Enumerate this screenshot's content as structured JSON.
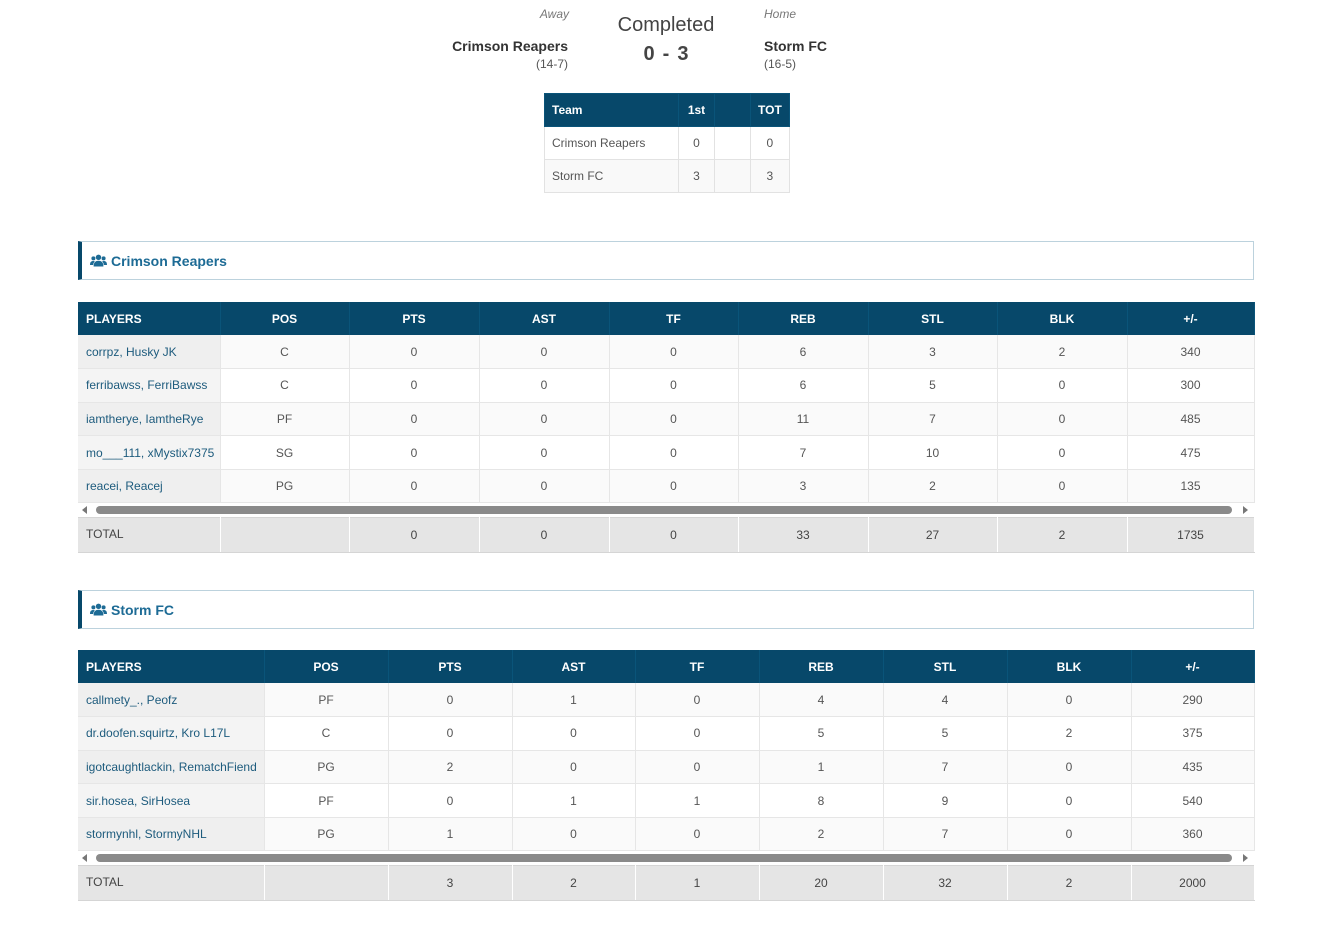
{
  "game": {
    "away_label": "Away",
    "home_label": "Home",
    "status": "Completed",
    "away_score": "0",
    "home_score": "3",
    "score_separator": "-",
    "away_team": "Crimson Reapers",
    "away_record": "(14-7)",
    "home_team": "Storm FC",
    "home_record": "(16-5)"
  },
  "linescore": {
    "headers": [
      "Team",
      "1st",
      "",
      "TOT"
    ],
    "rows": [
      {
        "team": "Crimson Reapers",
        "p1": "0",
        "blank": "",
        "tot": "0"
      },
      {
        "team": "Storm FC",
        "p1": "3",
        "blank": "",
        "tot": "3"
      }
    ]
  },
  "colors": {
    "header_bg": "#07486a",
    "link": "#1d5b7d",
    "section_title": "#1d6b95"
  },
  "icons": {
    "section": "users-icon"
  },
  "teams": [
    {
      "title": "Crimson Reapers",
      "columns": [
        "PLAYERS",
        "POS",
        "PTS",
        "AST",
        "TF",
        "REB",
        "STL",
        "BLK",
        "+/-"
      ],
      "players": [
        {
          "name": "corrpz, Husky JK",
          "pos": "C",
          "pts": "0",
          "ast": "0",
          "tf": "0",
          "reb": "6",
          "stl": "3",
          "blk": "2",
          "pm": "340"
        },
        {
          "name": "ferribawss, FerriBawss",
          "pos": "C",
          "pts": "0",
          "ast": "0",
          "tf": "0",
          "reb": "6",
          "stl": "5",
          "blk": "0",
          "pm": "300"
        },
        {
          "name": "iamtherye, IamtheRye",
          "pos": "PF",
          "pts": "0",
          "ast": "0",
          "tf": "0",
          "reb": "11",
          "stl": "7",
          "blk": "0",
          "pm": "485"
        },
        {
          "name": "mo___111, xMystix7375",
          "pos": "SG",
          "pts": "0",
          "ast": "0",
          "tf": "0",
          "reb": "7",
          "stl": "10",
          "blk": "0",
          "pm": "475"
        },
        {
          "name": "reacei, Reacej",
          "pos": "PG",
          "pts": "0",
          "ast": "0",
          "tf": "0",
          "reb": "3",
          "stl": "2",
          "blk": "0",
          "pm": "135"
        }
      ],
      "totals": {
        "label": "TOTAL",
        "pos": "",
        "pts": "0",
        "ast": "0",
        "tf": "0",
        "reb": "33",
        "stl": "27",
        "blk": "2",
        "pm": "1735"
      }
    },
    {
      "title": "Storm FC",
      "columns": [
        "PLAYERS",
        "POS",
        "PTS",
        "AST",
        "TF",
        "REB",
        "STL",
        "BLK",
        "+/-"
      ],
      "players": [
        {
          "name": "callmety_., Peofz",
          "pos": "PF",
          "pts": "0",
          "ast": "1",
          "tf": "0",
          "reb": "4",
          "stl": "4",
          "blk": "0",
          "pm": "290"
        },
        {
          "name": "dr.doofen.squirtz, Kro L17L",
          "pos": "C",
          "pts": "0",
          "ast": "0",
          "tf": "0",
          "reb": "5",
          "stl": "5",
          "blk": "2",
          "pm": "375"
        },
        {
          "name": "igotcaughtlackin, RematchFiend",
          "pos": "PG",
          "pts": "2",
          "ast": "0",
          "tf": "0",
          "reb": "1",
          "stl": "7",
          "blk": "0",
          "pm": "435"
        },
        {
          "name": "sir.hosea, SirHosea",
          "pos": "PF",
          "pts": "0",
          "ast": "1",
          "tf": "1",
          "reb": "8",
          "stl": "9",
          "blk": "0",
          "pm": "540"
        },
        {
          "name": "stormynhl, StormyNHL",
          "pos": "PG",
          "pts": "1",
          "ast": "0",
          "tf": "0",
          "reb": "2",
          "stl": "7",
          "blk": "0",
          "pm": "360"
        }
      ],
      "totals": {
        "label": "TOTAL",
        "pos": "",
        "pts": "3",
        "ast": "2",
        "tf": "1",
        "reb": "20",
        "stl": "32",
        "blk": "2",
        "pm": "2000"
      }
    }
  ]
}
